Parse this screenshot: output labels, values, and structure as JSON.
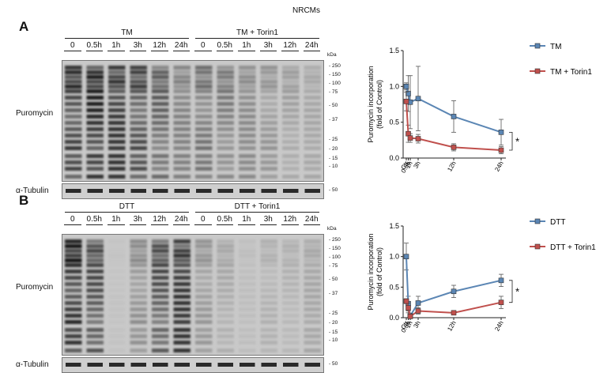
{
  "figure": {
    "cell_type": "NRCMs",
    "panels": [
      {
        "letter": "A",
        "group1": "TM",
        "group2": "TM + Torin1",
        "lanes": [
          "0",
          "0.5h",
          "1h",
          "3h",
          "12h",
          "24h",
          "0",
          "0.5h",
          "1h",
          "3h",
          "12h",
          "24h"
        ],
        "row_label_main": "Puromycin",
        "row_label_tub": "α-Tubulin",
        "kda_header": "kDa",
        "markers": [
          "250",
          "150",
          "100",
          "75",
          "50",
          "37",
          "25",
          "20",
          "15",
          "10"
        ],
        "tub_marker": "50",
        "blot_intensity": [
          0.85,
          0.9,
          0.8,
          0.75,
          0.6,
          0.4,
          0.5,
          0.45,
          0.35,
          0.3,
          0.25,
          0.2
        ]
      },
      {
        "letter": "B",
        "group1": "DTT",
        "group2": "DTT + Torin1",
        "lanes": [
          "0",
          "0.5h",
          "1h",
          "3h",
          "12h",
          "24h",
          "0",
          "0.5h",
          "1h",
          "3h",
          "12h",
          "24h"
        ],
        "row_label_main": "Puromycin",
        "row_label_tub": "α-Tubulin",
        "kda_header": "kDa",
        "markers": [
          "250",
          "150",
          "100",
          "75",
          "50",
          "37",
          "25",
          "20",
          "15",
          "10"
        ],
        "tub_marker": "50",
        "blot_intensity": [
          0.95,
          0.7,
          0.05,
          0.35,
          0.7,
          0.8,
          0.3,
          0.2,
          0.08,
          0.15,
          0.15,
          0.2
        ]
      }
    ]
  },
  "chart_data": [
    {
      "type": "line",
      "ylabel": "Puromycin incorporation\n(fold of Control)",
      "ylim": [
        0,
        1.5
      ],
      "yticks": [
        "0.0",
        "0.5",
        "1.0",
        "1.5"
      ],
      "x": [
        0,
        0.5,
        1,
        3,
        12,
        24
      ],
      "xticklabels": [
        "Ctr",
        "0.5h",
        "1h",
        "3h",
        "12h",
        "24h"
      ],
      "significance": "*",
      "series": [
        {
          "name": "TM",
          "color": "#5b86b4",
          "values": [
            1.0,
            0.9,
            0.78,
            0.83,
            0.58,
            0.36
          ],
          "errors": [
            0.05,
            0.25,
            0.37,
            0.45,
            0.22,
            0.18
          ]
        },
        {
          "name": "TM + Torin1",
          "color": "#c0504d",
          "values": [
            0.79,
            0.34,
            0.28,
            0.27,
            0.15,
            0.11
          ],
          "errors": [
            0.13,
            0.12,
            0.06,
            0.06,
            0.05,
            0.05
          ]
        }
      ]
    },
    {
      "type": "line",
      "ylabel": "Puromycin incorporation\n(fold of Control)",
      "ylim": [
        0,
        1.5
      ],
      "yticks": [
        "0.0",
        "0.5",
        "1.0",
        "1.5"
      ],
      "x": [
        0,
        0.5,
        1,
        3,
        12,
        24
      ],
      "xticklabels": [
        "Ctr",
        "0.5h",
        "1h",
        "3h",
        "12h",
        "24h"
      ],
      "significance": "*",
      "series": [
        {
          "name": "DTT",
          "color": "#5b86b4",
          "values": [
            1.0,
            0.23,
            0.03,
            0.24,
            0.43,
            0.61
          ],
          "errors": [
            0.22,
            0.12,
            0.03,
            0.11,
            0.1,
            0.1
          ]
        },
        {
          "name": "DTT + Torin1",
          "color": "#c0504d",
          "values": [
            0.27,
            0.16,
            0.02,
            0.11,
            0.08,
            0.25
          ],
          "errors": [
            0.04,
            0.08,
            0.02,
            0.05,
            0.03,
            0.1
          ]
        }
      ]
    }
  ]
}
